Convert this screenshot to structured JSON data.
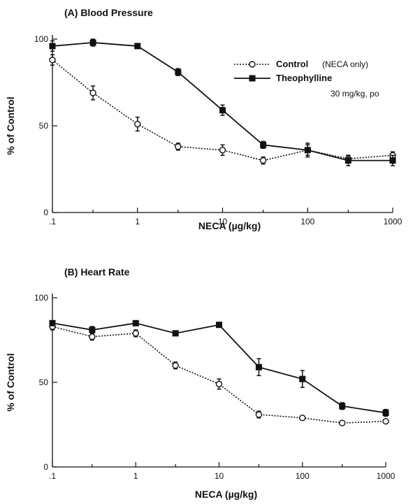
{
  "chart_data": [
    {
      "type": "line",
      "title": "(A) Blood Pressure",
      "xlabel": "NECA (µg/kg)",
      "ylabel": "% of Control",
      "x_scale": "log",
      "xlim": [
        0.1,
        1000
      ],
      "ylim": [
        0,
        100
      ],
      "x_ticks": [
        0.1,
        1,
        10,
        100,
        1000
      ],
      "x_tick_labels": [
        ".1",
        "1",
        "10",
        "100",
        "1000"
      ],
      "y_ticks": [
        0,
        50,
        100
      ],
      "y_tick_labels": [
        "0",
        "50",
        "100"
      ],
      "grid": false,
      "legend": {
        "placement": "top-right",
        "entries": [
          {
            "label": "Control",
            "note": "(NECA only)"
          },
          {
            "label": "Theophylline",
            "note": "30 mg/kg, po"
          }
        ]
      },
      "x": [
        0.1,
        0.3,
        1,
        3,
        10,
        30,
        100,
        300,
        1000
      ],
      "series": [
        {
          "name": "Control",
          "marker": "open-circle",
          "line_style": "dotted",
          "values": [
            88,
            69,
            51,
            38,
            36,
            30,
            36,
            31,
            33
          ],
          "errors": [
            3,
            4,
            4,
            2,
            3,
            2,
            3,
            2,
            2
          ]
        },
        {
          "name": "Theophylline",
          "marker": "filled-square",
          "line_style": "solid",
          "values": [
            96,
            98,
            96,
            81,
            59,
            39,
            36,
            30,
            30
          ],
          "errors": [
            3,
            2,
            1,
            2,
            3,
            2,
            4,
            3,
            3
          ]
        }
      ]
    },
    {
      "type": "line",
      "title": "(B) Heart Rate",
      "xlabel": "NECA (µg/kg)",
      "ylabel": "% of Control",
      "x_scale": "log",
      "xlim": [
        0.1,
        1000
      ],
      "ylim": [
        0,
        100
      ],
      "x_ticks": [
        0.1,
        1,
        10,
        100,
        1000
      ],
      "x_tick_labels": [
        ".1",
        "1",
        "10",
        "100",
        "1000"
      ],
      "y_ticks": [
        0,
        50,
        100
      ],
      "y_tick_labels": [
        "0",
        "50",
        "100"
      ],
      "grid": false,
      "x": [
        0.1,
        0.3,
        1,
        3,
        10,
        30,
        100,
        300,
        1000
      ],
      "series": [
        {
          "name": "Control",
          "marker": "open-circle",
          "line_style": "dotted",
          "values": [
            83,
            77,
            79,
            60,
            49,
            31,
            29,
            26,
            27
          ],
          "errors": [
            2,
            2,
            2,
            2,
            3,
            2,
            1,
            1,
            1
          ]
        },
        {
          "name": "Theophylline",
          "marker": "filled-square",
          "line_style": "solid",
          "values": [
            85,
            81,
            85,
            79,
            84,
            59,
            52,
            36,
            32
          ],
          "errors": [
            1,
            2,
            1,
            1,
            1,
            5,
            5,
            2,
            2
          ]
        }
      ]
    }
  ]
}
